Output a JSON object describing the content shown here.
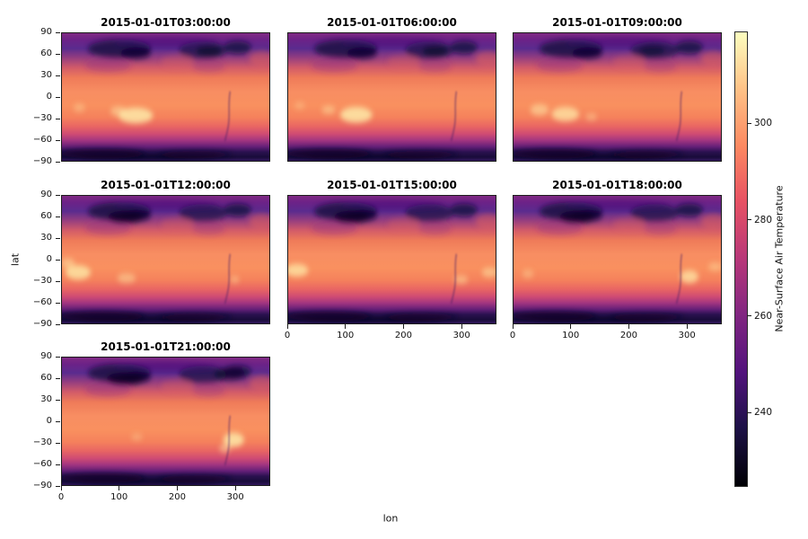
{
  "figure": {
    "background": "#ffffff",
    "text_color": "#111111",
    "spine_color": "#1c1c1c"
  },
  "chart_data": {
    "type": "heatmap",
    "layout": "faceted-grid",
    "ncols": 3,
    "x": {
      "label": "lon",
      "range": [
        0,
        360
      ],
      "ticks": [
        0,
        100,
        200,
        300
      ],
      "tick_labels": [
        "0",
        "100",
        "200",
        "300"
      ]
    },
    "y": {
      "label": "lat",
      "range": [
        -90,
        90
      ],
      "ticks": [
        90,
        60,
        30,
        0,
        -30,
        -60,
        -90
      ],
      "tick_labels": [
        "90",
        "60",
        "30",
        "0",
        "−30",
        "−60",
        "−90"
      ]
    },
    "colorbar": {
      "label": "Near-Surface Air Temperature",
      "ticks": [
        240,
        260,
        280,
        300
      ],
      "tick_labels": [
        "240",
        "260",
        "280",
        "300"
      ],
      "vmin": 225,
      "vmax": 319,
      "colormap": "magma",
      "colormap_stops": [
        {
          "pos": 0,
          "color": "#000004"
        },
        {
          "pos": 13,
          "color": "#1d1147"
        },
        {
          "pos": 25,
          "color": "#51127c"
        },
        {
          "pos": 38,
          "color": "#822681"
        },
        {
          "pos": 50,
          "color": "#b73779"
        },
        {
          "pos": 63,
          "color": "#e75263"
        },
        {
          "pos": 75,
          "color": "#fc8961"
        },
        {
          "pos": 88,
          "color": "#fec488"
        },
        {
          "pos": 100,
          "color": "#fcfdbf"
        }
      ]
    },
    "base_profile": [
      {
        "pos": 0,
        "color": "#7f2a83"
      },
      {
        "pos": 5,
        "color": "#6d2287"
      },
      {
        "pos": 12,
        "color": "#5a2b8e"
      },
      {
        "pos": 19,
        "color": "#933d80"
      },
      {
        "pos": 27,
        "color": "#d25b69"
      },
      {
        "pos": 35,
        "color": "#ef7b59"
      },
      {
        "pos": 46,
        "color": "#f88e62"
      },
      {
        "pos": 57,
        "color": "#f9905f"
      },
      {
        "pos": 66,
        "color": "#f5815c"
      },
      {
        "pos": 73,
        "color": "#e96663"
      },
      {
        "pos": 79,
        "color": "#cf4b73"
      },
      {
        "pos": 84,
        "color": "#a23580"
      },
      {
        "pos": 89,
        "color": "#641f78"
      },
      {
        "pos": 93,
        "color": "#2a1150"
      },
      {
        "pos": 97,
        "color": "#190c3a"
      },
      {
        "pos": 100,
        "color": "#31175c"
      }
    ],
    "arctic_patches": [
      [
        100,
        68,
        55,
        13,
        "#170a3d",
        0.8
      ],
      [
        128,
        62,
        26,
        8,
        "#0e0630",
        0.75
      ],
      [
        245,
        66,
        42,
        12,
        "#1a0c42",
        0.7
      ],
      [
        305,
        70,
        24,
        9,
        "#150939",
        0.75
      ],
      [
        80,
        45,
        40,
        10,
        "#8c2981",
        0.35
      ],
      [
        255,
        44,
        28,
        9,
        "#8c2981",
        0.3
      ],
      [
        180,
        77,
        90,
        7,
        "#3b0f70",
        0.4
      ]
    ],
    "antarctic_patches": [
      [
        70,
        -80,
        75,
        7,
        "#0d0628",
        0.75
      ],
      [
        230,
        -81,
        65,
        6,
        "#0d0628",
        0.55
      ],
      [
        150,
        -85,
        120,
        5,
        "#0a0520",
        0.5
      ]
    ],
    "warm_patches": [
      [
        347,
        54,
        22,
        11,
        "#e8655c",
        0.45
      ],
      [
        200,
        50,
        28,
        9,
        "#e8655c",
        0.3
      ]
    ],
    "hot_color": "#fdeaa8",
    "facets": [
      {
        "title": "2015-01-01T03:00:00",
        "hot_spots": [
          [
            128,
            -26,
            30,
            11,
            0.85
          ],
          [
            98,
            -20,
            14,
            7,
            0.5
          ],
          [
            30,
            -15,
            10,
            6,
            0.35
          ]
        ],
        "arctic_extra": [
          [
            255,
            65,
            22,
            8,
            "#0d0627",
            0.6
          ]
        ]
      },
      {
        "title": "2015-01-01T06:00:00",
        "hot_spots": [
          [
            118,
            -25,
            28,
            11,
            0.85
          ],
          [
            70,
            -18,
            12,
            6,
            0.45
          ],
          [
            20,
            -12,
            9,
            5,
            0.3
          ]
        ],
        "arctic_extra": [
          [
            255,
            65,
            22,
            8,
            "#0d0627",
            0.6
          ]
        ]
      },
      {
        "title": "2015-01-01T09:00:00",
        "hot_spots": [
          [
            90,
            -24,
            24,
            10,
            0.75
          ],
          [
            45,
            -18,
            16,
            8,
            0.55
          ],
          [
            135,
            -28,
            10,
            5,
            0.4
          ]
        ],
        "arctic_extra": [
          [
            240,
            66,
            22,
            8,
            "#0d0627",
            0.5
          ]
        ]
      },
      {
        "title": "2015-01-01T12:00:00",
        "hot_spots": [
          [
            28,
            -18,
            22,
            10,
            0.8
          ],
          [
            10,
            -5,
            12,
            7,
            0.5
          ],
          [
            112,
            -26,
            16,
            7,
            0.45
          ],
          [
            300,
            -28,
            8,
            5,
            0.4
          ]
        ],
        "arctic_extra": [
          [
            110,
            60,
            30,
            9,
            "#0a0524",
            0.7
          ]
        ]
      },
      {
        "title": "2015-01-01T15:00:00",
        "hot_spots": [
          [
            15,
            -15,
            20,
            9,
            0.75
          ],
          [
            350,
            -18,
            14,
            7,
            0.5
          ],
          [
            300,
            -28,
            12,
            6,
            0.45
          ]
        ],
        "arctic_extra": [
          [
            110,
            60,
            30,
            9,
            "#0a0524",
            0.7
          ]
        ]
      },
      {
        "title": "2015-01-01T18:00:00",
        "hot_spots": [
          [
            305,
            -24,
            16,
            9,
            0.75
          ],
          [
            350,
            -10,
            12,
            6,
            0.4
          ],
          [
            25,
            -20,
            10,
            6,
            0.35
          ]
        ],
        "arctic_extra": [
          [
            110,
            60,
            30,
            9,
            "#0a0524",
            0.7
          ]
        ]
      },
      {
        "title": "2015-01-01T21:00:00",
        "hot_spots": [
          [
            298,
            -26,
            18,
            10,
            0.85
          ],
          [
            283,
            -38,
            10,
            6,
            0.5
          ],
          [
            130,
            -22,
            10,
            5,
            0.3
          ]
        ],
        "arctic_extra": [
          [
            110,
            60,
            32,
            9,
            "#0a0524",
            0.75
          ],
          [
            290,
            67,
            26,
            9,
            "#0d0627",
            0.6
          ]
        ]
      }
    ],
    "andes_ridge": {
      "color": "#4a1f66",
      "opacity": 0.35
    }
  }
}
